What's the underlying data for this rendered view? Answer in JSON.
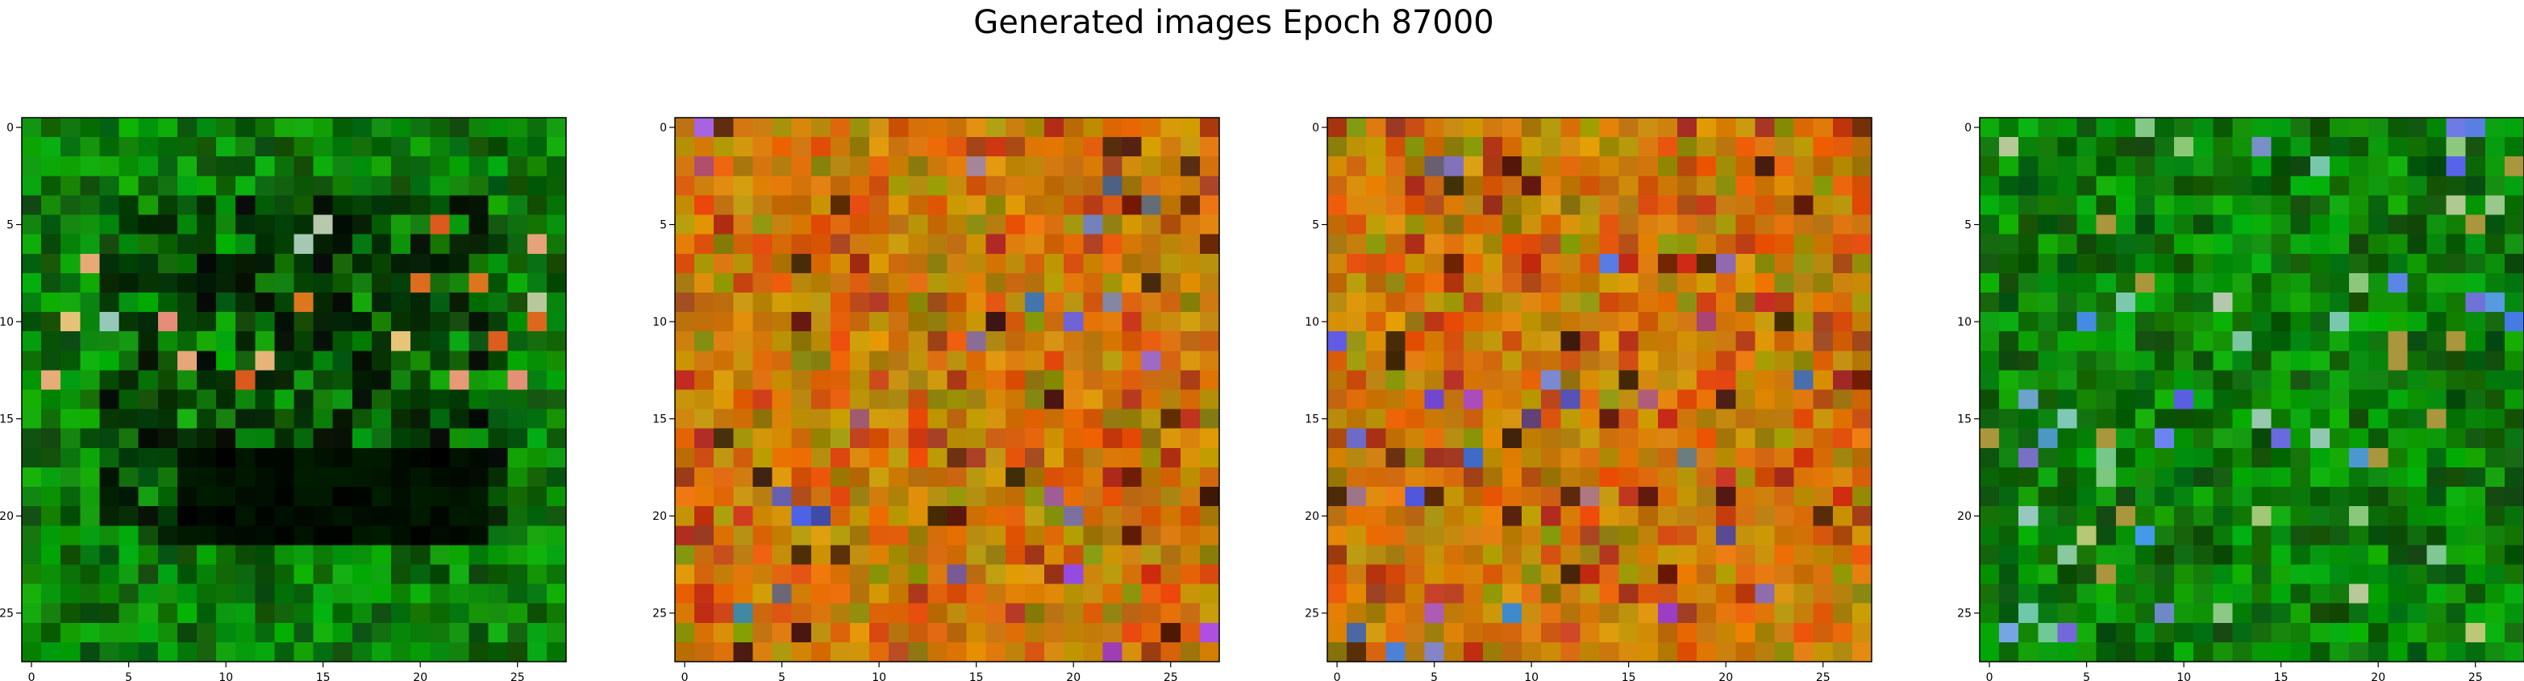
{
  "chart_data": {
    "type": "heatmap",
    "title": "Generated images Epoch 87000",
    "panels": [
      {
        "name": "image-1",
        "palette": "green",
        "xticks": [
          0,
          5,
          10,
          15,
          20,
          25
        ],
        "yticks": [
          0,
          5,
          10,
          15,
          20,
          25
        ],
        "xlim": [
          -0.5,
          27.5
        ],
        "ylim": [
          27.5,
          -0.5
        ],
        "grid_size": [
          28,
          28
        ]
      },
      {
        "name": "image-2",
        "palette": "orange",
        "xticks": [
          0,
          5,
          10,
          15,
          20,
          25
        ],
        "yticks": [
          0,
          5,
          10,
          15,
          20,
          25
        ],
        "xlim": [
          -0.5,
          27.5
        ],
        "ylim": [
          27.5,
          -0.5
        ],
        "grid_size": [
          28,
          28
        ]
      },
      {
        "name": "image-3",
        "palette": "orange",
        "xticks": [
          0,
          5,
          10,
          15,
          20,
          25
        ],
        "yticks": [
          0,
          5,
          10,
          15,
          20,
          25
        ],
        "xlim": [
          -0.5,
          27.5
        ],
        "ylim": [
          27.5,
          -0.5
        ],
        "grid_size": [
          28,
          28
        ]
      },
      {
        "name": "image-4",
        "palette": "green",
        "xticks": [
          0,
          5,
          10,
          15,
          20,
          25
        ],
        "yticks": [
          0,
          5,
          10,
          15,
          20,
          25
        ],
        "xlim": [
          -0.5,
          27.5
        ],
        "ylim": [
          27.5,
          -0.5
        ],
        "grid_size": [
          28,
          28
        ]
      }
    ]
  }
}
